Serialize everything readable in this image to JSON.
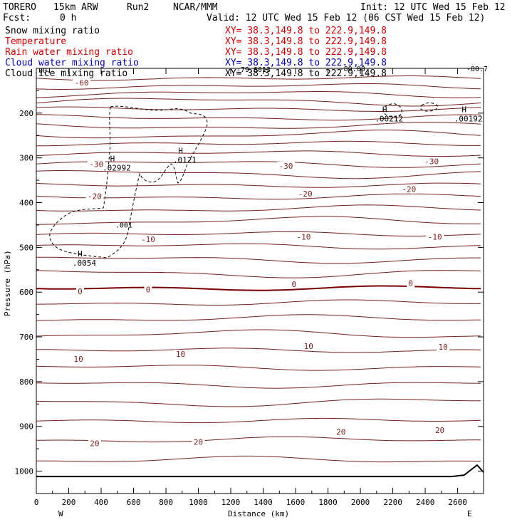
{
  "header": {
    "model": "TORERO",
    "resolution": "15km ARW",
    "run": "Run2",
    "org": "NCAR/MMM",
    "init": "Init: 12 UTC Wed 15 Feb 12",
    "fcst_label": "Fcst:",
    "fcst_value": "0 h",
    "valid": "Valid: 12 UTC Wed 15 Feb 12 (06 CST Wed 15 Feb 12)"
  },
  "legend": [
    {
      "name": "Snow mixing ratio",
      "color": "#000000",
      "xy": "XY=  38.3,149.8 to 222.9,149.8"
    },
    {
      "name": "Temperature",
      "color": "#cc0000",
      "xy": "XY=  38.3,149.8 to 222.9,149.8"
    },
    {
      "name": "Rain water mixing ratio",
      "color": "#cc0000",
      "xy": "XY=  38.3,149.8 to 222.9,149.8"
    },
    {
      "name": "Cloud water mixing ratio",
      "color": "#0000aa",
      "xy": "XY=  38.3,149.8 to 222.9,149.8"
    },
    {
      "name": "Cloud ice mixing ratio",
      "color": "#000000",
      "xy": "XY=  38.3,149.8 to 222.9,149.8"
    }
  ],
  "colors": {
    "isotherm": "#7a1f1f",
    "zero_line": "#7a0000",
    "ice": "#000000",
    "frame": "#000000"
  },
  "chart_data": {
    "type": "cross-section",
    "xlabel": "Distance (km)",
    "ylabel": "Pressure (hPa)",
    "xlim": [
      0,
      2760
    ],
    "ylim": [
      1050,
      100
    ],
    "x_ticks": [
      0,
      200,
      400,
      600,
      800,
      1000,
      1200,
      1400,
      1600,
      1800,
      2000,
      2200,
      2400,
      2600
    ],
    "x_tick_labels": [
      "0",
      "200",
      "400",
      "600",
      "800",
      "1000",
      "1200",
      "1400",
      "1600",
      "1800",
      "2000",
      "2200",
      "2400",
      "2600"
    ],
    "y_ticks": [
      200,
      300,
      400,
      500,
      600,
      700,
      800,
      900,
      1000
    ],
    "y_tick_labels": [
      "200",
      "300",
      "400",
      "500",
      "600",
      "700",
      "800",
      "900",
      "1000"
    ],
    "x_end_labels": {
      "left": "W",
      "right": "E"
    },
    "isotherms_hpa": [
      122,
      140,
      157,
      174,
      191,
      210,
      229,
      248,
      268,
      290,
      313,
      336,
      361,
      387,
      414,
      441,
      470,
      497,
      527,
      558,
      591,
      624,
      659,
      694,
      730,
      768,
      806,
      846,
      887,
      930,
      975
    ],
    "zero_isotherm_hpa": 591,
    "surface_pressure_hpa": 1012,
    "temperature_labels": [
      {
        "text": "-60",
        "x": 280,
        "p": 132
      },
      {
        "text": "-30",
        "x": 370,
        "p": 314
      },
      {
        "text": "-30",
        "x": 1540,
        "p": 318
      },
      {
        "text": "-30",
        "x": 2440,
        "p": 308
      },
      {
        "text": "-20",
        "x": 360,
        "p": 386
      },
      {
        "text": "-20",
        "x": 1660,
        "p": 380
      },
      {
        "text": "-20",
        "x": 2300,
        "p": 370
      },
      {
        "text": "-10",
        "x": 690,
        "p": 482
      },
      {
        "text": "-10",
        "x": 1650,
        "p": 476
      },
      {
        "text": "-10",
        "x": 2460,
        "p": 476
      },
      {
        "text": "0",
        "x": 270,
        "p": 598
      },
      {
        "text": "0",
        "x": 690,
        "p": 594
      },
      {
        "text": "0",
        "x": 1590,
        "p": 582
      },
      {
        "text": "0",
        "x": 2310,
        "p": 580
      },
      {
        "text": "10",
        "x": 260,
        "p": 749
      },
      {
        "text": "10",
        "x": 890,
        "p": 738
      },
      {
        "text": "10",
        "x": 1680,
        "p": 721
      },
      {
        "text": "10",
        "x": 2510,
        "p": 722
      },
      {
        "text": "20",
        "x": 360,
        "p": 938
      },
      {
        "text": "20",
        "x": 1000,
        "p": 935
      },
      {
        "text": "20",
        "x": 1880,
        "p": 912
      },
      {
        "text": "20",
        "x": 2490,
        "p": 908
      }
    ],
    "ice_maxima": [
      {
        "label": "H",
        "value": ".02992",
        "x": 470,
        "p": 308
      },
      {
        "label": "H",
        "value": ".0121",
        "x": 890,
        "p": 290
      },
      {
        "label": "H",
        "value": ".0054",
        "x": 270,
        "p": 520
      },
      {
        "label": "H",
        "value": ".00212",
        "x": 2150,
        "p": 198
      },
      {
        "label": "H",
        "value": ".00192",
        "x": 2640,
        "p": 198
      }
    ],
    "ice_contour_labels": [
      {
        "text": ".001",
        "x": 540,
        "p": 456
      },
      {
        "text": ".001",
        "x": 40,
        "p": 110
      },
      {
        "text": "-79.6013",
        "x": 1340,
        "p": 108
      },
      {
        "text": "-80.08",
        "x": 1950,
        "p": 106
      },
      {
        "text": "-80.7",
        "x": 2720,
        "p": 106
      }
    ]
  }
}
